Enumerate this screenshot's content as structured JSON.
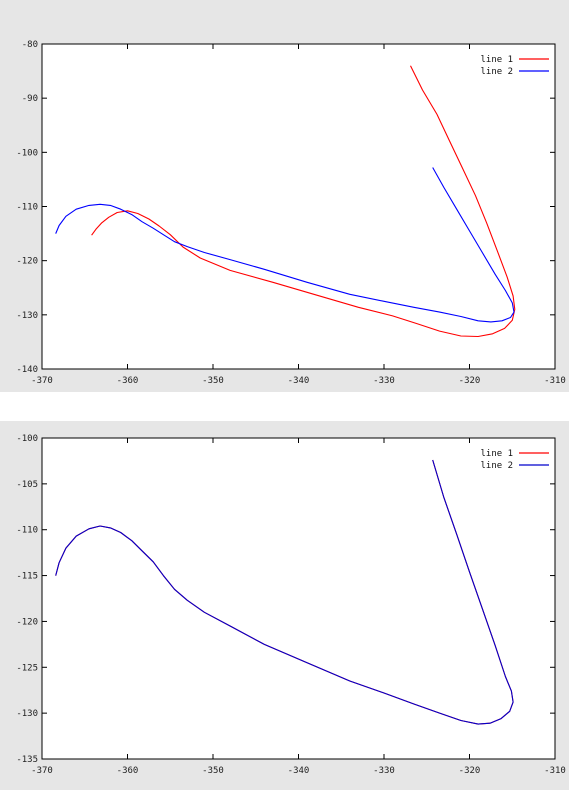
{
  "colors": {
    "line_1": "#ff0000",
    "line_2": "#0000ff",
    "line_2_bottom": "#0000cc",
    "background": "#e6e6e6",
    "plot_area": "#ffffff"
  },
  "chart_data": [
    {
      "type": "line",
      "title": "",
      "xlabel": "",
      "ylabel": "",
      "xlim": [
        -370,
        -310
      ],
      "ylim": [
        -140,
        -80
      ],
      "xticks": [
        -370,
        -360,
        -350,
        -340,
        -330,
        -320,
        -310
      ],
      "yticks": [
        -140,
        -130,
        -120,
        -110,
        -100,
        -90,
        -80
      ],
      "grid": false,
      "legend_position": "top-right",
      "series": [
        {
          "name": "line 1",
          "color": "#ff0000",
          "x": [
            -326.9,
            -325.5,
            -323.8,
            -322.3,
            -320.8,
            -319.3,
            -318.0,
            -316.8,
            -315.6,
            -314.9,
            -314.7,
            -315.0,
            -315.9,
            -317.3,
            -319.0,
            -321.0,
            -323.5,
            -326.2,
            -329.0,
            -333.0,
            -338.0,
            -343.0,
            -348.0,
            -351.5,
            -353.5,
            -355.0,
            -356.3,
            -357.5,
            -358.8,
            -360.0,
            -361.2,
            -362.2,
            -363.0,
            -363.7,
            -364.2
          ],
          "y": [
            -84.0,
            -88.5,
            -93.0,
            -98.0,
            -103.0,
            -108.0,
            -113.0,
            -118.0,
            -123.0,
            -126.5,
            -129.0,
            -131.0,
            -132.5,
            -133.5,
            -134.0,
            -133.9,
            -133.0,
            -131.6,
            -130.2,
            -128.6,
            -126.3,
            -124.0,
            -121.8,
            -119.5,
            -117.5,
            -115.2,
            -113.6,
            -112.3,
            -111.3,
            -110.8,
            -111.1,
            -112.0,
            -113.0,
            -114.2,
            -115.3
          ]
        },
        {
          "name": "line 2",
          "color": "#0000ff",
          "x": [
            -324.3,
            -323.0,
            -321.5,
            -320.0,
            -318.5,
            -317.0,
            -315.8,
            -315.0,
            -314.8,
            -315.2,
            -316.2,
            -317.5,
            -319.0,
            -321.0,
            -323.5,
            -326.5,
            -330.0,
            -334.0,
            -339.0,
            -344.0,
            -348.0,
            -351.0,
            -353.0,
            -354.5,
            -355.8,
            -357.0,
            -358.3,
            -359.5,
            -360.8,
            -362.0,
            -363.2,
            -364.5,
            -366.0,
            -367.2,
            -368.0,
            -368.4
          ],
          "y": [
            -102.8,
            -106.5,
            -110.5,
            -114.5,
            -118.5,
            -122.5,
            -125.5,
            -127.8,
            -129.5,
            -130.5,
            -131.1,
            -131.3,
            -131.1,
            -130.3,
            -129.5,
            -128.6,
            -127.5,
            -126.2,
            -124.0,
            -121.6,
            -119.8,
            -118.5,
            -117.4,
            -116.5,
            -115.2,
            -114.0,
            -112.8,
            -111.5,
            -110.5,
            -109.8,
            -109.6,
            -109.8,
            -110.5,
            -111.8,
            -113.5,
            -115.0
          ]
        }
      ]
    },
    {
      "type": "line",
      "title": "",
      "xlabel": "",
      "ylabel": "",
      "xlim": [
        -370,
        -310
      ],
      "ylim": [
        -135,
        -100
      ],
      "xticks": [
        -370,
        -360,
        -350,
        -340,
        -330,
        -320,
        -310
      ],
      "yticks": [
        -135,
        -130,
        -125,
        -120,
        -115,
        -110,
        -105,
        -100
      ],
      "grid": false,
      "legend_position": "top-right",
      "series": [
        {
          "name": "line 1",
          "color": "#ff0000",
          "x": [
            -324.3,
            -323.0,
            -321.5,
            -320.0,
            -318.5,
            -317.0,
            -315.8,
            -315.1,
            -314.9,
            -315.3,
            -316.3,
            -317.6,
            -319.0,
            -321.0,
            -323.5,
            -326.5,
            -330.0,
            -334.0,
            -339.0,
            -344.0,
            -348.0,
            -351.0,
            -353.0,
            -354.5,
            -355.8,
            -357.0,
            -358.3,
            -359.5,
            -360.8,
            -362.0,
            -363.2,
            -364.5,
            -366.0,
            -367.2,
            -368.0,
            -368.4
          ],
          "y": [
            -102.4,
            -106.5,
            -110.5,
            -114.6,
            -118.6,
            -122.6,
            -126.0,
            -127.6,
            -128.8,
            -129.8,
            -130.6,
            -131.1,
            -131.2,
            -130.8,
            -130.0,
            -129.0,
            -127.8,
            -126.5,
            -124.5,
            -122.5,
            -120.5,
            -119.0,
            -117.7,
            -116.5,
            -115.0,
            -113.5,
            -112.3,
            -111.2,
            -110.3,
            -109.8,
            -109.6,
            -109.9,
            -110.7,
            -112.0,
            -113.6,
            -115.0
          ]
        },
        {
          "name": "line 2",
          "color": "#0000cc",
          "x": [
            -324.3,
            -323.0,
            -321.5,
            -320.0,
            -318.5,
            -317.0,
            -315.8,
            -315.1,
            -314.9,
            -315.3,
            -316.3,
            -317.6,
            -319.0,
            -321.0,
            -323.5,
            -326.5,
            -330.0,
            -334.0,
            -339.0,
            -344.0,
            -348.0,
            -351.0,
            -353.0,
            -354.5,
            -355.8,
            -357.0,
            -358.3,
            -359.5,
            -360.8,
            -362.0,
            -363.2,
            -364.5,
            -366.0,
            -367.2,
            -368.0,
            -368.4
          ],
          "y": [
            -102.4,
            -106.5,
            -110.5,
            -114.6,
            -118.6,
            -122.6,
            -126.0,
            -127.6,
            -128.8,
            -129.8,
            -130.6,
            -131.1,
            -131.2,
            -130.8,
            -130.0,
            -129.0,
            -127.8,
            -126.5,
            -124.5,
            -122.5,
            -120.5,
            -119.0,
            -117.7,
            -116.5,
            -115.0,
            -113.5,
            -112.3,
            -111.2,
            -110.3,
            -109.8,
            -109.6,
            -109.9,
            -110.7,
            -112.0,
            -113.6,
            -115.0
          ]
        }
      ]
    }
  ]
}
